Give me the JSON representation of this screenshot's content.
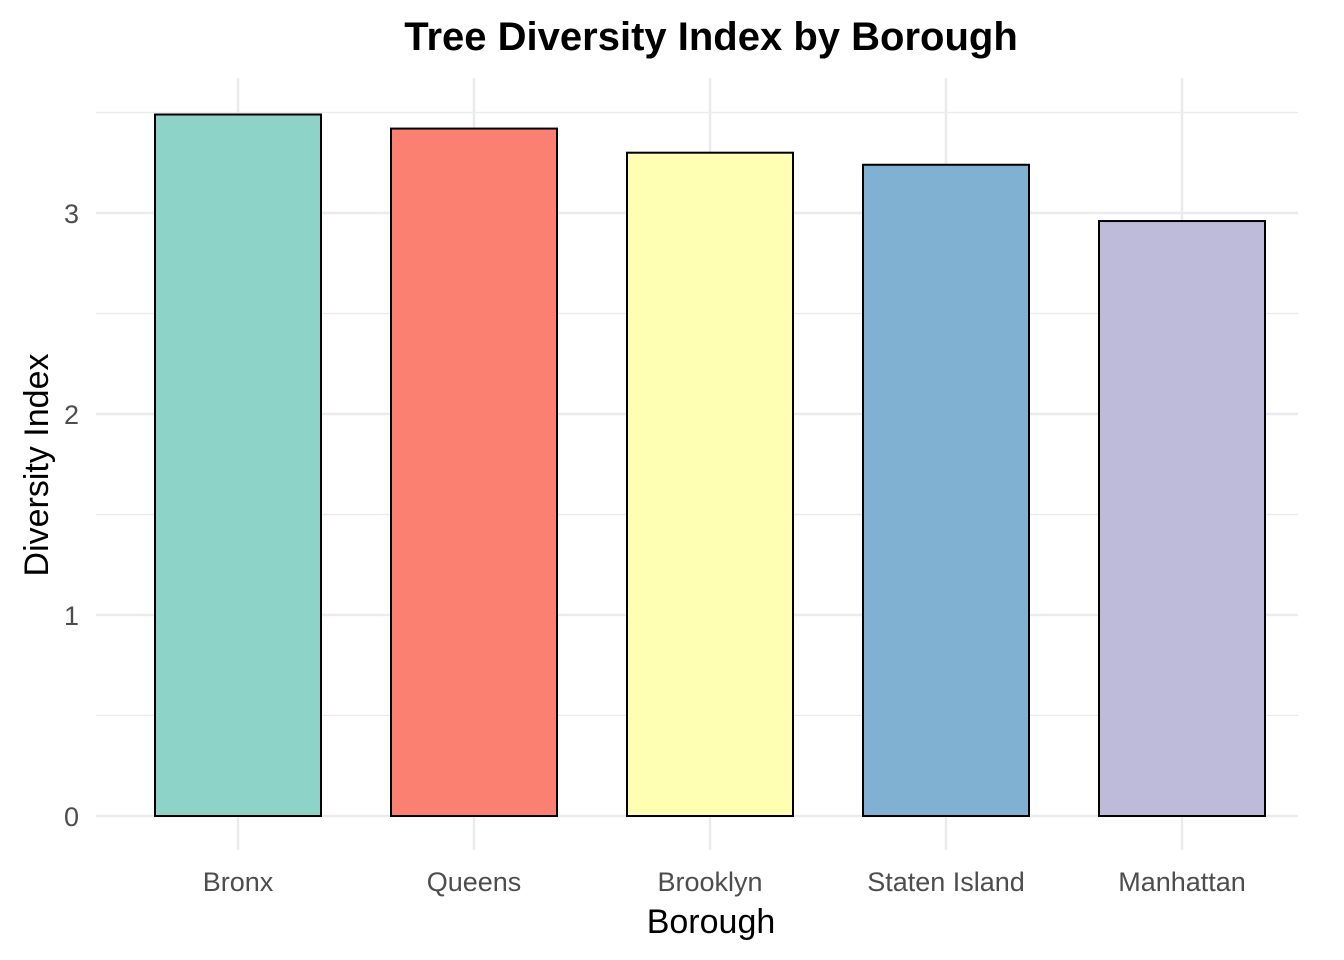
{
  "chart_data": {
    "type": "bar",
    "title": "Tree Diversity Index by Borough",
    "xlabel": "Borough",
    "ylabel": "Diversity Index",
    "categories": [
      "Bronx",
      "Queens",
      "Brooklyn",
      "Staten Island",
      "Manhattan"
    ],
    "values": [
      3.49,
      3.42,
      3.3,
      3.24,
      2.96
    ],
    "colors": [
      "#8DD3C7",
      "#FB8072",
      "#FFFFB3",
      "#80B1D3",
      "#BEBADA"
    ],
    "bar_outline_color": "#000000",
    "ylim": [
      0,
      3.67
    ],
    "yticks": [
      0,
      1,
      2,
      3
    ],
    "ytick_labels": [
      "0",
      "1",
      "2",
      "3"
    ],
    "grid": true,
    "legend": "none"
  }
}
